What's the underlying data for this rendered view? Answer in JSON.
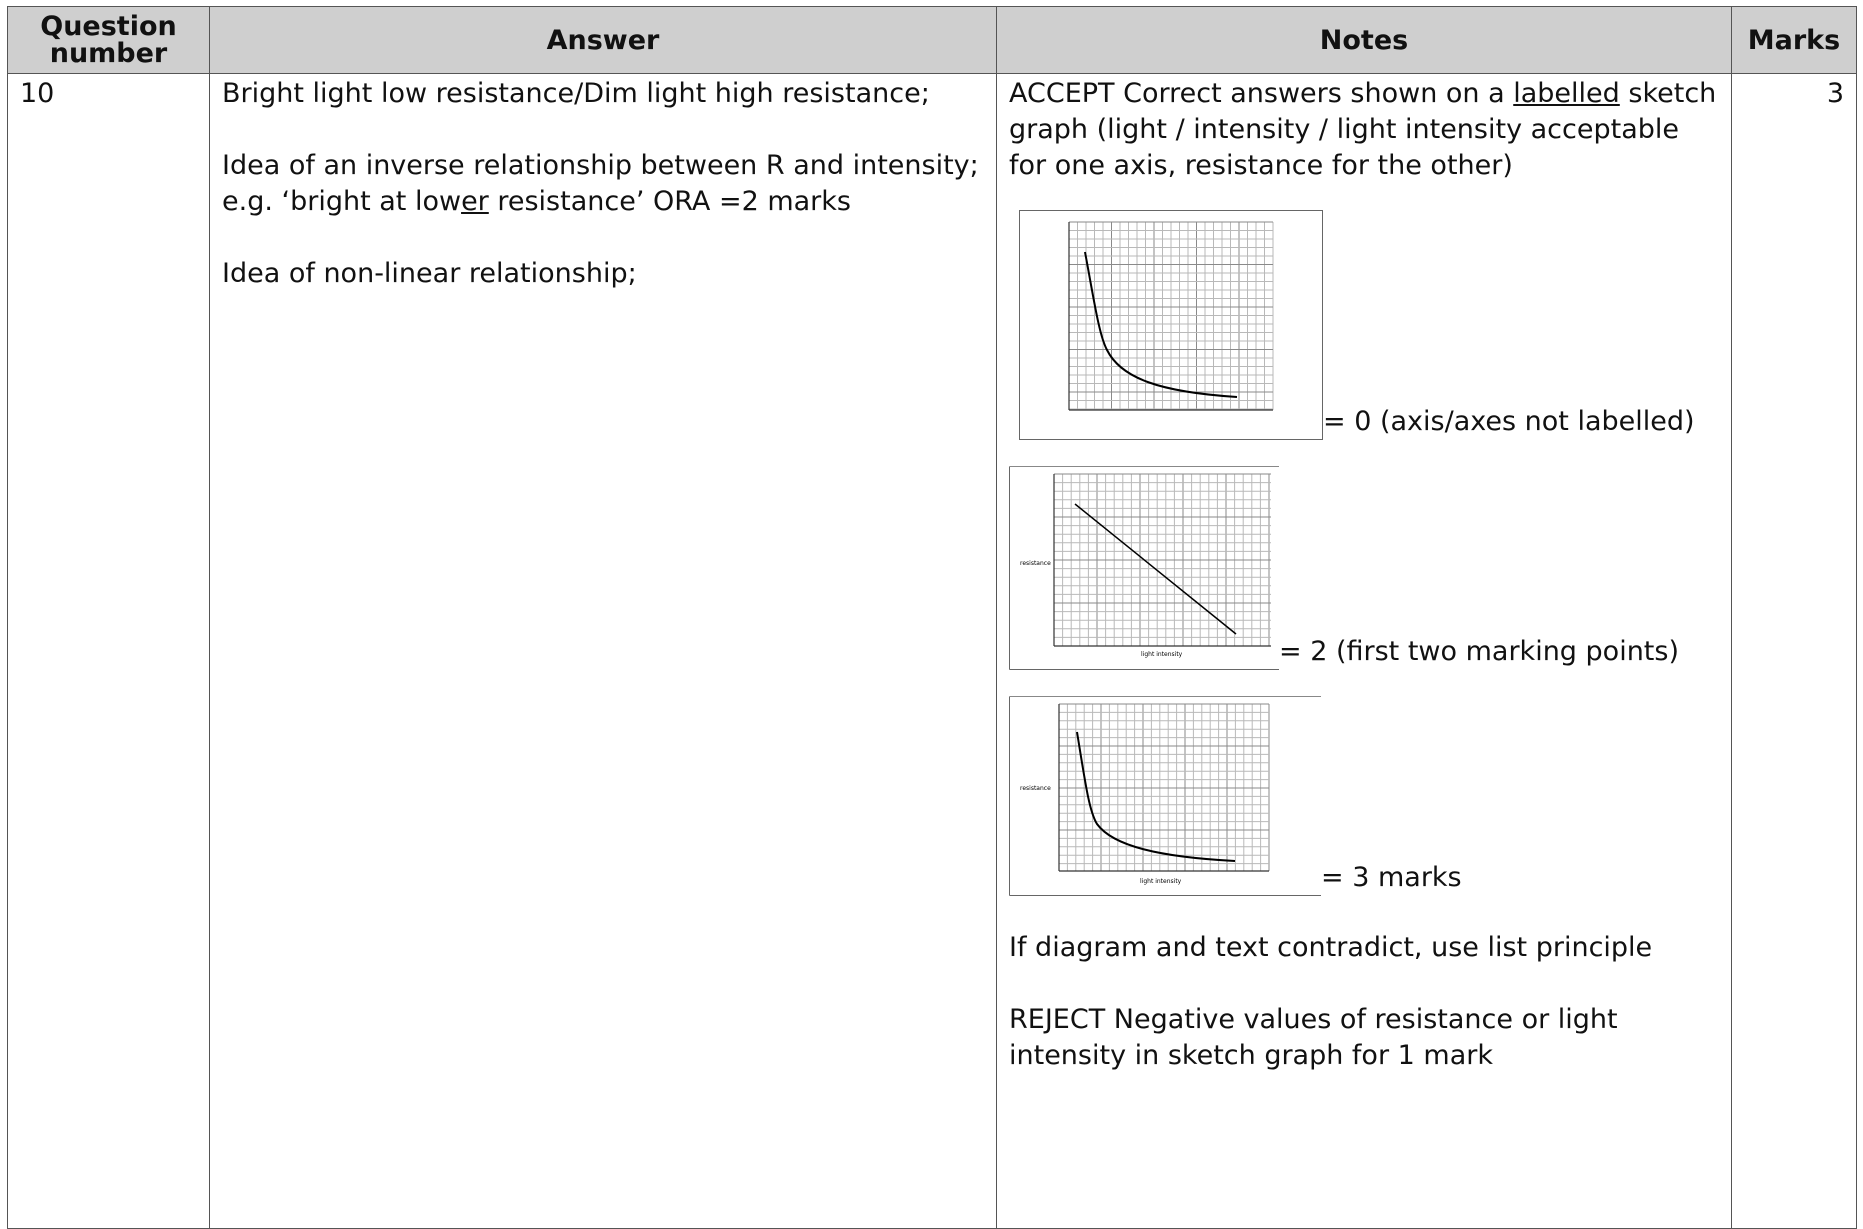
{
  "headers": {
    "question": "Question number",
    "answer": "Answer",
    "notes": "Notes",
    "marks": "Marks"
  },
  "row": {
    "question_number": "10",
    "marks": "3",
    "answer": {
      "line1": "Bright light low resistance/Dim light high resistance;",
      "line2": "Idea of an inverse relationship between R and intensity;",
      "line3_pre": "e.g. ‘bright at low",
      "line3_underlined": "er",
      "line3_post": " resistance’ ORA =2 marks",
      "line4": "Idea of non-linear relationship;"
    },
    "notes": {
      "accept_pre": "ACCEPT Correct answers shown on a ",
      "accept_underlined": "labelled",
      "accept_post": " sketch graph (light / intensity / light intensity acceptable for one axis, resistance for the other)",
      "sketch1_caption": "= 0 (axis/axes not labelled)",
      "sketch2_caption": "= 2 (first two marking points)",
      "sketch3_caption": "= 3 marks",
      "sketch_ylabel": "resistance",
      "sketch_xlabel": "light intensity",
      "list_principle": "If diagram and text contradict, use list principle",
      "reject": "REJECT Negative values of resistance or light intensity in sketch graph for 1 mark"
    }
  }
}
